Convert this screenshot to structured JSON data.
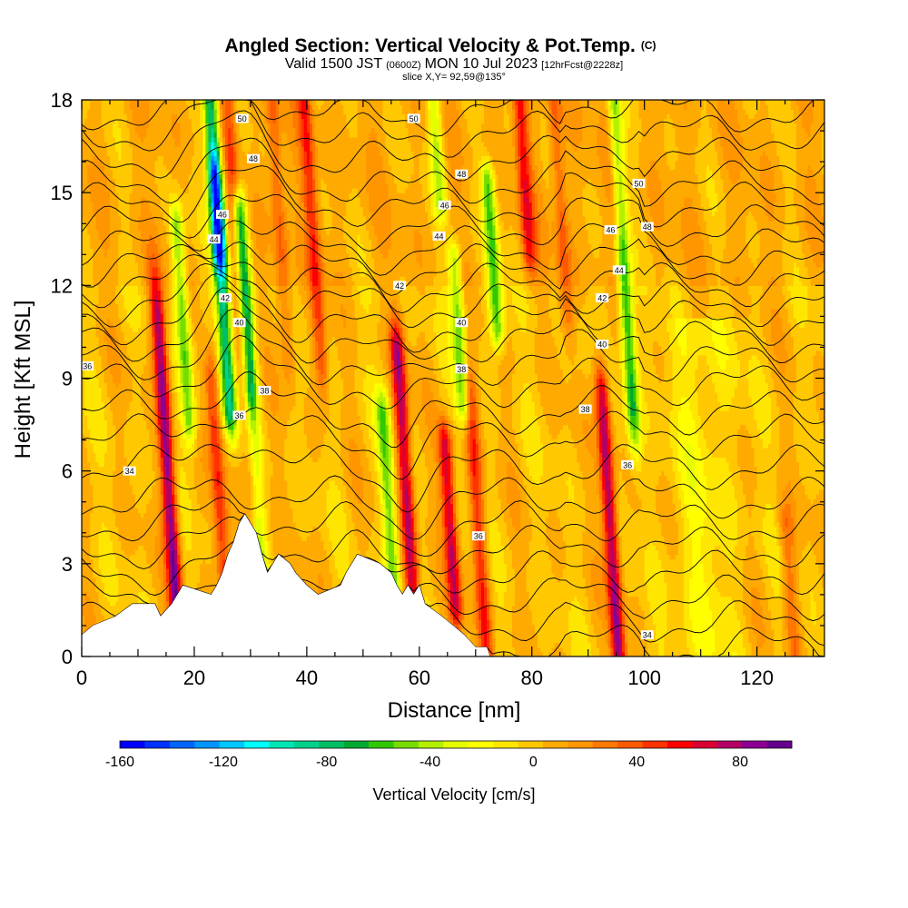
{
  "chart_data": {
    "type": "heatmap",
    "title_main": "Angled Section: Vertical Velocity & Pot.Temp.",
    "title_unit": "(C)",
    "subtitle_a": "Valid 1500 JST",
    "subtitle_b": "(0600Z)",
    "subtitle_c": "MON 10 Jul 2023",
    "subtitle_d": "[12hrFcst@2228z]",
    "subtitle2": "slice X,Y= 92,59@135°",
    "xlabel": "Distance [nm]",
    "ylabel": "Height [Kft MSL]",
    "xlim": [
      0,
      132
    ],
    "ylim": [
      0,
      18
    ],
    "xticks": [
      "0",
      "20",
      "40",
      "60",
      "80",
      "100",
      "120"
    ],
    "yticks": [
      "0",
      "3",
      "6",
      "9",
      "12",
      "15",
      "18"
    ],
    "colorbar": {
      "label": "Vertical Velocity [cm/s]",
      "range": [
        -160,
        100
      ],
      "step": 10,
      "tick_labels": [
        "-160",
        "-120",
        "-80",
        "-40",
        "0",
        "40",
        "80"
      ],
      "colors": [
        "#0000ff",
        "#0032ff",
        "#0064ff",
        "#0096ff",
        "#00c8ff",
        "#00ffff",
        "#00e6b4",
        "#00d28c",
        "#00be64",
        "#00aa32",
        "#32c800",
        "#78dc00",
        "#b4f000",
        "#e6ff00",
        "#ffff00",
        "#ffe600",
        "#ffc800",
        "#ffaa00",
        "#ff9600",
        "#ff7800",
        "#ff5a00",
        "#ff3200",
        "#ff0000",
        "#dc0032",
        "#b40064",
        "#8c0096",
        "#64008c"
      ]
    },
    "updrafts": [
      {
        "x": 15.5,
        "zmin": 0.8,
        "zmax": 10.0,
        "peak": 95
      },
      {
        "x": 24.5,
        "zmin": 1.8,
        "zmax": 8.0,
        "peak": 55
      },
      {
        "x": 28.0,
        "zmin": 6.5,
        "zmax": 18,
        "peak": 45
      },
      {
        "x": 35.0,
        "zmin": 11,
        "zmax": 18,
        "peak": 40
      },
      {
        "x": 41.0,
        "zmin": 10.5,
        "zmax": 17.5,
        "peak": 50
      },
      {
        "x": 57.5,
        "zmin": 3.0,
        "zmax": 9.0,
        "peak": 85
      },
      {
        "x": 65.5,
        "zmin": 2.5,
        "zmax": 6.0,
        "peak": 75
      },
      {
        "x": 70.5,
        "zmin": 1.0,
        "zmax": 7.5,
        "peak": 55
      },
      {
        "x": 78.5,
        "zmin": 14,
        "zmax": 18,
        "peak": 55
      },
      {
        "x": 85.0,
        "zmin": 12,
        "zmax": 17.5,
        "peak": 40
      },
      {
        "x": 94.0,
        "zmin": 0.8,
        "zmax": 7.5,
        "peak": 90
      },
      {
        "x": 94.5,
        "zmin": 15,
        "zmax": 18,
        "peak": 35
      },
      {
        "x": 126.0,
        "zmin": 0.5,
        "zmax": 3.5,
        "peak": 35
      }
    ],
    "downdrafts": [
      {
        "x": 18.0,
        "zmin": 8.5,
        "zmax": 13.0,
        "peak": -55
      },
      {
        "x": 23.5,
        "zmin": 14,
        "zmax": 18,
        "peak": -90
      },
      {
        "x": 25.0,
        "zmin": 9,
        "zmax": 14.5,
        "peak": -85
      },
      {
        "x": 29.0,
        "zmin": 9.5,
        "zmax": 13.5,
        "peak": -95
      },
      {
        "x": 31.0,
        "zmin": 3.5,
        "zmax": 6.5,
        "peak": -40
      },
      {
        "x": 54.5,
        "zmin": 3.0,
        "zmax": 7.0,
        "peak": -50
      },
      {
        "x": 67.0,
        "zmin": 9,
        "zmax": 12,
        "peak": -50
      },
      {
        "x": 73.0,
        "zmin": 11.5,
        "zmax": 14.5,
        "peak": -60
      },
      {
        "x": 96.0,
        "zmin": 9,
        "zmax": 18,
        "peak": -70
      },
      {
        "x": 63.0,
        "zmin": 15.5,
        "zmax": 18,
        "peak": -40
      }
    ],
    "terrain": [
      [
        0,
        0.7
      ],
      [
        2,
        1.0
      ],
      [
        6,
        1.3
      ],
      [
        9,
        1.7
      ],
      [
        13,
        1.7
      ],
      [
        14,
        1.3
      ],
      [
        16,
        1.7
      ],
      [
        17,
        2.0
      ],
      [
        18,
        2.3
      ],
      [
        23,
        2.0
      ],
      [
        24,
        2.3
      ],
      [
        25,
        2.7
      ],
      [
        26,
        3.3
      ],
      [
        27,
        3.7
      ],
      [
        28,
        4.3
      ],
      [
        29,
        4.6
      ],
      [
        31,
        4.0
      ],
      [
        32,
        3.3
      ],
      [
        33,
        2.7
      ],
      [
        34,
        3.0
      ],
      [
        35,
        3.3
      ],
      [
        37,
        3.0
      ],
      [
        38,
        2.7
      ],
      [
        40,
        2.3
      ],
      [
        42,
        2.0
      ],
      [
        46,
        2.3
      ],
      [
        47,
        2.7
      ],
      [
        48,
        3.0
      ],
      [
        49,
        3.3
      ],
      [
        53,
        3.0
      ],
      [
        55,
        2.7
      ],
      [
        56,
        2.3
      ],
      [
        57,
        2.0
      ],
      [
        58,
        2.3
      ],
      [
        59,
        2.0
      ],
      [
        60,
        2.3
      ],
      [
        61,
        1.7
      ],
      [
        64,
        1.3
      ],
      [
        66,
        1.0
      ],
      [
        68,
        0.7
      ],
      [
        70,
        0.3
      ],
      [
        72,
        0.3
      ],
      [
        72.5,
        0.0
      ],
      [
        132,
        0.0
      ]
    ],
    "theta_levels": [
      "34",
      "34",
      "35",
      "35",
      "36",
      "36",
      "36",
      "37",
      "38",
      "39",
      "40",
      "41",
      "42",
      "43",
      "44",
      "45",
      "46",
      "47",
      "48",
      "49",
      "50",
      "51",
      "52",
      "53"
    ],
    "theta_base_heights": [
      0.3,
      1.1,
      1.9,
      2.7,
      3.5,
      4.3,
      5.1,
      6.1,
      7.1,
      7.9,
      8.8,
      9.5,
      10.2,
      10.8,
      11.4,
      12.0,
      12.6,
      13.2,
      13.9,
      14.6,
      15.3,
      16.1,
      16.9,
      17.6
    ],
    "contour_labels": [
      {
        "x": 1,
        "y": 9.4,
        "t": "36"
      },
      {
        "x": 8.5,
        "y": 6.0,
        "t": "34"
      },
      {
        "x": 28,
        "y": 7.8,
        "t": "36"
      },
      {
        "x": 32.5,
        "y": 8.6,
        "t": "38"
      },
      {
        "x": 28,
        "y": 10.8,
        "t": "40"
      },
      {
        "x": 25.5,
        "y": 11.6,
        "t": "42"
      },
      {
        "x": 23.5,
        "y": 13.5,
        "t": "44"
      },
      {
        "x": 25,
        "y": 14.3,
        "t": "46"
      },
      {
        "x": 30.5,
        "y": 16.1,
        "t": "48"
      },
      {
        "x": 28.5,
        "y": 17.4,
        "t": "50"
      },
      {
        "x": 70.5,
        "y": 3.9,
        "t": "36"
      },
      {
        "x": 67.5,
        "y": 9.3,
        "t": "38"
      },
      {
        "x": 67.5,
        "y": 10.8,
        "t": "40"
      },
      {
        "x": 56.5,
        "y": 12.0,
        "t": "42"
      },
      {
        "x": 63.5,
        "y": 13.6,
        "t": "44"
      },
      {
        "x": 64.5,
        "y": 14.6,
        "t": "46"
      },
      {
        "x": 67.5,
        "y": 15.6,
        "t": "48"
      },
      {
        "x": 59,
        "y": 17.4,
        "t": "50"
      },
      {
        "x": 89.5,
        "y": 8.0,
        "t": "38"
      },
      {
        "x": 92.5,
        "y": 10.1,
        "t": "40"
      },
      {
        "x": 92.5,
        "y": 11.6,
        "t": "42"
      },
      {
        "x": 95.5,
        "y": 12.5,
        "t": "44"
      },
      {
        "x": 94,
        "y": 13.8,
        "t": "46"
      },
      {
        "x": 100.5,
        "y": 13.9,
        "t": "48"
      },
      {
        "x": 99,
        "y": 15.3,
        "t": "50"
      },
      {
        "x": 97,
        "y": 6.2,
        "t": "36"
      },
      {
        "x": 100.5,
        "y": 0.7,
        "t": "34"
      }
    ]
  }
}
